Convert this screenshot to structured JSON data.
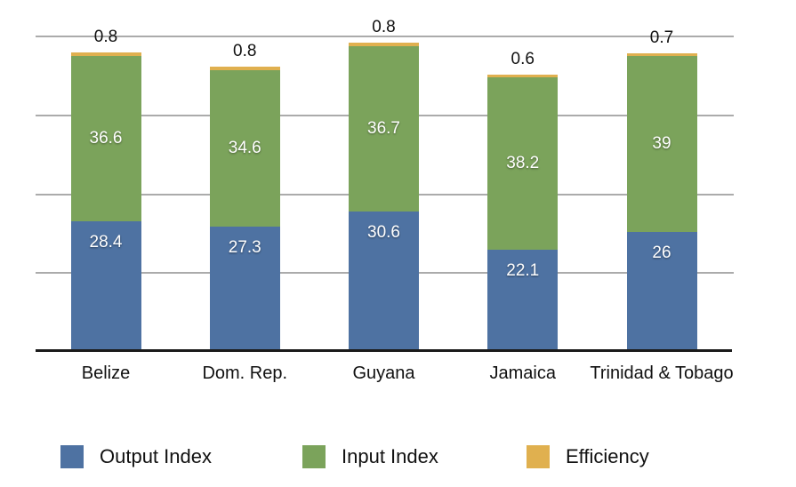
{
  "chart_data": {
    "type": "bar",
    "stacked": true,
    "title": "",
    "categories": [
      "Belize",
      "Dom. Rep.",
      "Guyana",
      "Jamaica",
      "Trinidad & Tobago"
    ],
    "series": [
      {
        "name": "Output Index",
        "color": "#4e72a2",
        "values": [
          28.4,
          27.3,
          30.6,
          22.1,
          26
        ],
        "value_labels": [
          "28.4",
          "27.3",
          "30.6",
          "22.1",
          "26"
        ],
        "label_placement": "inside-top",
        "label_color": "#ffffff"
      },
      {
        "name": "Input Index",
        "color": "#7ba35b",
        "values": [
          36.6,
          34.6,
          36.7,
          38.2,
          39
        ],
        "value_labels": [
          "36.6",
          "34.6",
          "36.7",
          "38.2",
          "39"
        ],
        "label_placement": "inside-center",
        "label_color": "#ffffff"
      },
      {
        "name": "Efficiency",
        "color": "#e0b04f",
        "values": [
          0.8,
          0.8,
          0.8,
          0.6,
          0.7
        ],
        "value_labels": [
          "0.8",
          "0.8",
          "0.8",
          "0.6",
          "0.7"
        ],
        "label_placement": "above",
        "label_color": "#111111"
      }
    ],
    "ylim": [
      0,
      70
    ],
    "gridline_count": 5,
    "grid": true,
    "gridline_color": "#ababab",
    "axis_color": "#1a1a1a",
    "legend_position": "bottom",
    "xlabel": "",
    "ylabel": ""
  }
}
